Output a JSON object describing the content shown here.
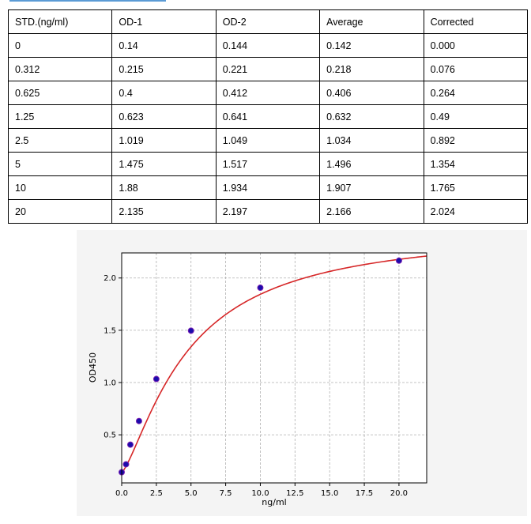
{
  "table": {
    "headers": [
      "STD.(ng/ml)",
      "OD-1",
      "OD-2",
      "Average",
      "Corrected"
    ],
    "rows": [
      [
        "0",
        "0.14",
        "0.144",
        "0.142",
        "0.000"
      ],
      [
        "0.312",
        "0.215",
        "0.221",
        "0.218",
        "0.076"
      ],
      [
        "0.625",
        "0.4",
        "0.412",
        "0.406",
        "0.264"
      ],
      [
        "1.25",
        "0.623",
        "0.641",
        "0.632",
        "0.49"
      ],
      [
        "2.5",
        "1.019",
        "1.049",
        "1.034",
        "0.892"
      ],
      [
        "5",
        "1.475",
        "1.517",
        "1.496",
        "1.354"
      ],
      [
        "10",
        "1.88",
        "1.934",
        "1.907",
        "1.765"
      ],
      [
        "20",
        "2.135",
        "2.197",
        "2.166",
        "2.024"
      ]
    ]
  },
  "chart_data": {
    "type": "scatter",
    "xlabel": "ng/ml",
    "ylabel": "OD450",
    "xlim": [
      0,
      22
    ],
    "ylim": [
      0.04,
      2.24
    ],
    "x_ticks": [
      "0.0",
      "2.5",
      "5.0",
      "7.5",
      "10.0",
      "12.5",
      "15.0",
      "17.5",
      "20.0"
    ],
    "y_ticks": [
      "0.5",
      "1.0",
      "1.5",
      "2.0"
    ],
    "grid": true,
    "points": {
      "x": [
        0,
        0.312,
        0.625,
        1.25,
        2.5,
        5,
        10,
        20
      ],
      "y": [
        0.142,
        0.218,
        0.406,
        0.632,
        1.034,
        1.496,
        1.907,
        2.166
      ]
    },
    "fit_curve": {
      "type": "4PL",
      "a": 0.142,
      "b": 1.35,
      "c": 4.79,
      "d": 2.474
    },
    "point_color": "#1a0dab",
    "point_edge_color": "#7a1fb3",
    "curve_color": "#d62728",
    "grid_color": "#b0b0b0"
  }
}
